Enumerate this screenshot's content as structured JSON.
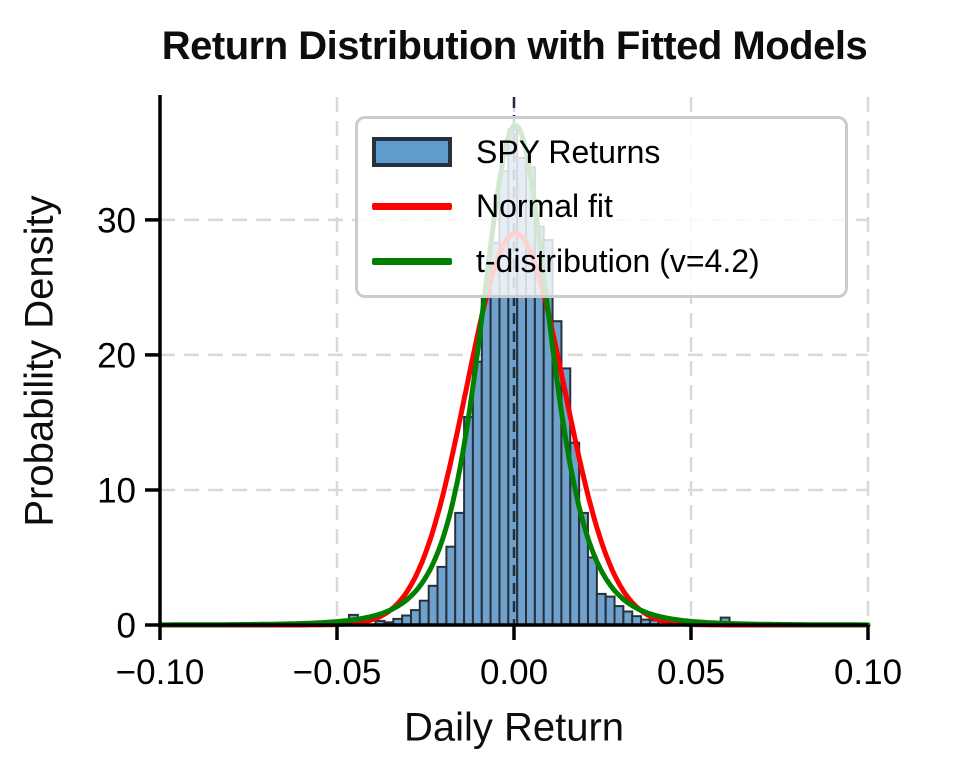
{
  "chart_data": {
    "type": "histogram",
    "title": "Return Distribution with Fitted Models",
    "xlabel": "Daily Return",
    "ylabel": "Probability Density",
    "xlim": [
      -0.1,
      0.1
    ],
    "ylim": [
      0,
      39.1
    ],
    "x_ticks": {
      "values": [
        -0.1,
        -0.05,
        0.0,
        0.05,
        0.1
      ],
      "labels": [
        "−0.10",
        "−0.05",
        "0.00",
        "0.05",
        "0.10"
      ]
    },
    "y_ticks": {
      "values": [
        0,
        10,
        20,
        30
      ],
      "labels": [
        "0",
        "10",
        "20",
        "30"
      ]
    },
    "grid": {
      "show": true,
      "color": "#d9d9d9",
      "style": "dashed"
    },
    "zero_line": {
      "x": 0.0,
      "color": "#1f2c3c",
      "style": "dashed"
    },
    "legend_position": "upper center",
    "series": [
      {
        "name": "SPY Returns",
        "type": "histogram",
        "bin_start": -0.0466,
        "bin_width": 0.0025,
        "densities": [
          0.75,
          0,
          0,
          0.3,
          0.2,
          0.45,
          0.7,
          1.1,
          1.8,
          2.9,
          4.3,
          5.8,
          8.3,
          15.4,
          19.5,
          24.4,
          28.3,
          33.6,
          36.7,
          34.6,
          33.9,
          29.5,
          28.5,
          22.5,
          19.0,
          13.5,
          8.3,
          5.0,
          2.3,
          2.1,
          1.4,
          1.0,
          0.65,
          0.4,
          0.35,
          0,
          0,
          0,
          0,
          0,
          0,
          0,
          0.55,
          0,
          0
        ],
        "fill_color": "#6FA1CC",
        "edge_color": "#25313D",
        "legend_swatch_color": "#5F9CCE"
      },
      {
        "name": "Normal fit",
        "type": "curve",
        "shape": "normal",
        "color": "#FF0000",
        "peak": 29.0,
        "center": 0.0004,
        "sigma": 0.0138
      },
      {
        "name": "t-distribution (v=4.2)",
        "type": "curve",
        "shape": "student_t",
        "color": "#008000",
        "peak": 37.0,
        "center": 0.0004,
        "scale": 0.0102,
        "nu": 4.2
      }
    ]
  }
}
